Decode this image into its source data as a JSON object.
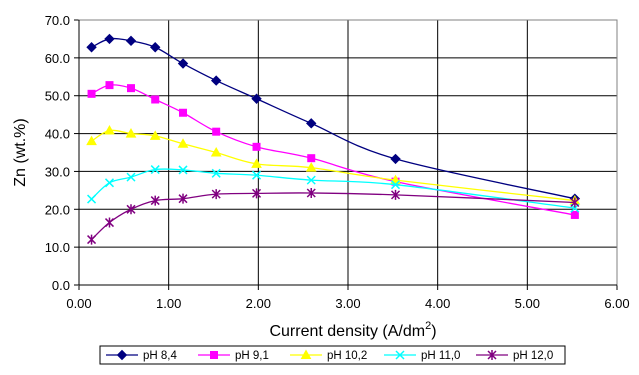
{
  "chart_data": {
    "type": "line",
    "xlabel": "Current density (A/dm",
    "xlabel_sup": "2",
    "xlabel_suffix": ")",
    "ylabel": "Zn (wt.%)",
    "xlim": [
      0,
      6
    ],
    "ylim": [
      0,
      70
    ],
    "x_ticks": [
      "0.00",
      "1.00",
      "2.00",
      "3.00",
      "4.00",
      "5.00",
      "6.00"
    ],
    "y_ticks": [
      "0.0",
      "10.0",
      "20.0",
      "30.0",
      "40.0",
      "50.0",
      "60.0",
      "70.0"
    ],
    "grid": true,
    "legend_position": "bottom",
    "series": [
      {
        "name": "pH 8,4",
        "color": "#000080",
        "marker": "diamond",
        "x": [
          0.14,
          0.34,
          0.58,
          0.85,
          1.16,
          1.53,
          1.98,
          2.59,
          3.53,
          5.53
        ],
        "y": [
          62.8,
          65.0,
          64.5,
          62.8,
          58.5,
          54.0,
          49.2,
          42.7,
          33.3,
          22.8
        ]
      },
      {
        "name": "pH 9,1",
        "color": "#ff00ff",
        "marker": "square",
        "x": [
          0.14,
          0.34,
          0.58,
          0.85,
          1.16,
          1.53,
          1.98,
          2.59,
          3.53,
          5.53
        ],
        "y": [
          50.5,
          52.8,
          52.0,
          49.0,
          45.5,
          40.5,
          36.5,
          33.5,
          27.3,
          18.5
        ]
      },
      {
        "name": "pH 10,2",
        "color": "#ffff00",
        "marker": "triangle",
        "x": [
          0.14,
          0.34,
          0.58,
          0.85,
          1.16,
          1.53,
          1.98,
          2.59,
          3.53,
          5.53
        ],
        "y": [
          38.0,
          40.8,
          40.0,
          39.4,
          37.3,
          35.0,
          32.0,
          31.0,
          27.7,
          22.3
        ]
      },
      {
        "name": "pH 11,0",
        "color": "#00ffff",
        "marker": "x",
        "x": [
          0.14,
          0.34,
          0.58,
          0.85,
          1.16,
          1.53,
          1.98,
          2.59,
          3.53,
          5.53
        ],
        "y": [
          22.7,
          27.0,
          28.5,
          30.5,
          30.4,
          29.5,
          29.0,
          27.7,
          26.5,
          20.3
        ]
      },
      {
        "name": "pH 12,0",
        "color": "#800080",
        "marker": "star",
        "x": [
          0.14,
          0.34,
          0.58,
          0.85,
          1.16,
          1.53,
          1.98,
          2.59,
          3.53,
          5.53
        ],
        "y": [
          12.0,
          16.5,
          20.0,
          22.3,
          22.8,
          24.0,
          24.2,
          24.3,
          23.8,
          21.8
        ]
      }
    ]
  }
}
